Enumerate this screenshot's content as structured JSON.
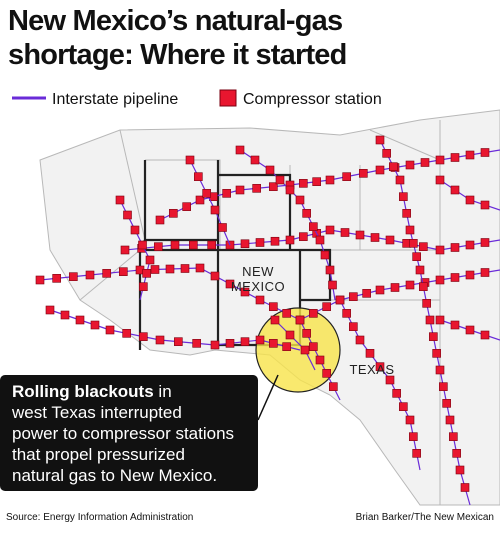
{
  "header": {
    "title_lines": [
      "New Mexico’s natural-gas",
      "shortage: Where it started"
    ]
  },
  "legend": {
    "pipeline": "Interstate pipeline",
    "station": "Compressor station"
  },
  "map_labels": {
    "new_mexico": [
      "NEW",
      "MEXICO"
    ],
    "texas": "TEXAS"
  },
  "callout": {
    "bold": "Rolling blackouts",
    "lines": [
      " in",
      "west Texas interrupted",
      "power to compressor stations",
      "that propel pressurized",
      "natural gas to New Mexico."
    ]
  },
  "footer": {
    "source": "Source: Energy Information Administration",
    "credit": "Brian Barker/The New Mexican"
  }
}
